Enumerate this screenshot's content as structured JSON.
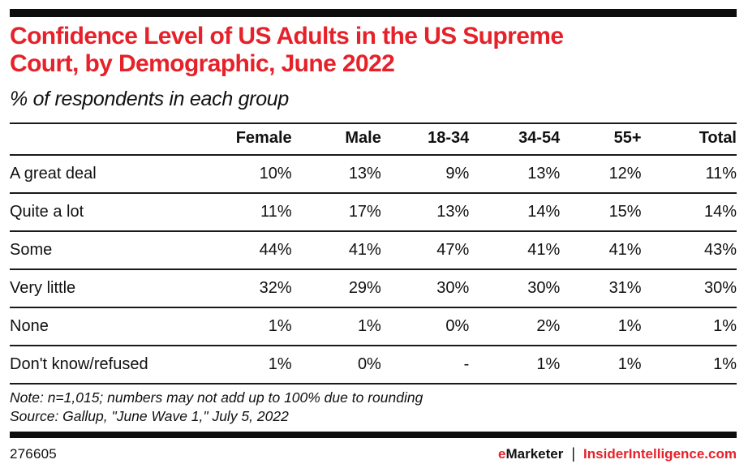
{
  "title_lines": [
    "Confidence Level of US Adults in the US Supreme",
    "Court, by Demographic, June 2022"
  ],
  "subtitle": "% of respondents in each group",
  "chart_data": {
    "type": "table",
    "title": "Confidence Level of US Adults in the US Supreme Court, by Demographic, June 2022",
    "unit": "% of respondents in each group",
    "columns": [
      "Female",
      "Male",
      "18-34",
      "34-54",
      "55+",
      "Total"
    ],
    "rows": [
      {
        "label": "A great deal",
        "values": [
          "10%",
          "13%",
          "9%",
          "13%",
          "12%",
          "11%"
        ]
      },
      {
        "label": "Quite a lot",
        "values": [
          "11%",
          "17%",
          "13%",
          "14%",
          "15%",
          "14%"
        ]
      },
      {
        "label": "Some",
        "values": [
          "44%",
          "41%",
          "47%",
          "41%",
          "41%",
          "43%"
        ]
      },
      {
        "label": "Very little",
        "values": [
          "32%",
          "29%",
          "30%",
          "30%",
          "31%",
          "30%"
        ]
      },
      {
        "label": "None",
        "values": [
          "1%",
          "1%",
          "0%",
          "2%",
          "1%",
          "1%"
        ]
      },
      {
        "label": "Don't know/refused",
        "values": [
          "1%",
          "0%",
          "-",
          "1%",
          "1%",
          "1%"
        ]
      }
    ]
  },
  "note": "Note: n=1,015; numbers may not add up to 100% due to rounding",
  "source": "Source: Gallup, \"June Wave 1,\" July 5, 2022",
  "footer": {
    "chart_id": "276605",
    "brand_e": "e",
    "brand_rest": "Marketer",
    "separator": "|",
    "site": "InsiderIntelligence.com"
  },
  "colors": {
    "accent_red": "#e62129",
    "text_black": "#111111",
    "rule_black": "#1a1a1a"
  }
}
